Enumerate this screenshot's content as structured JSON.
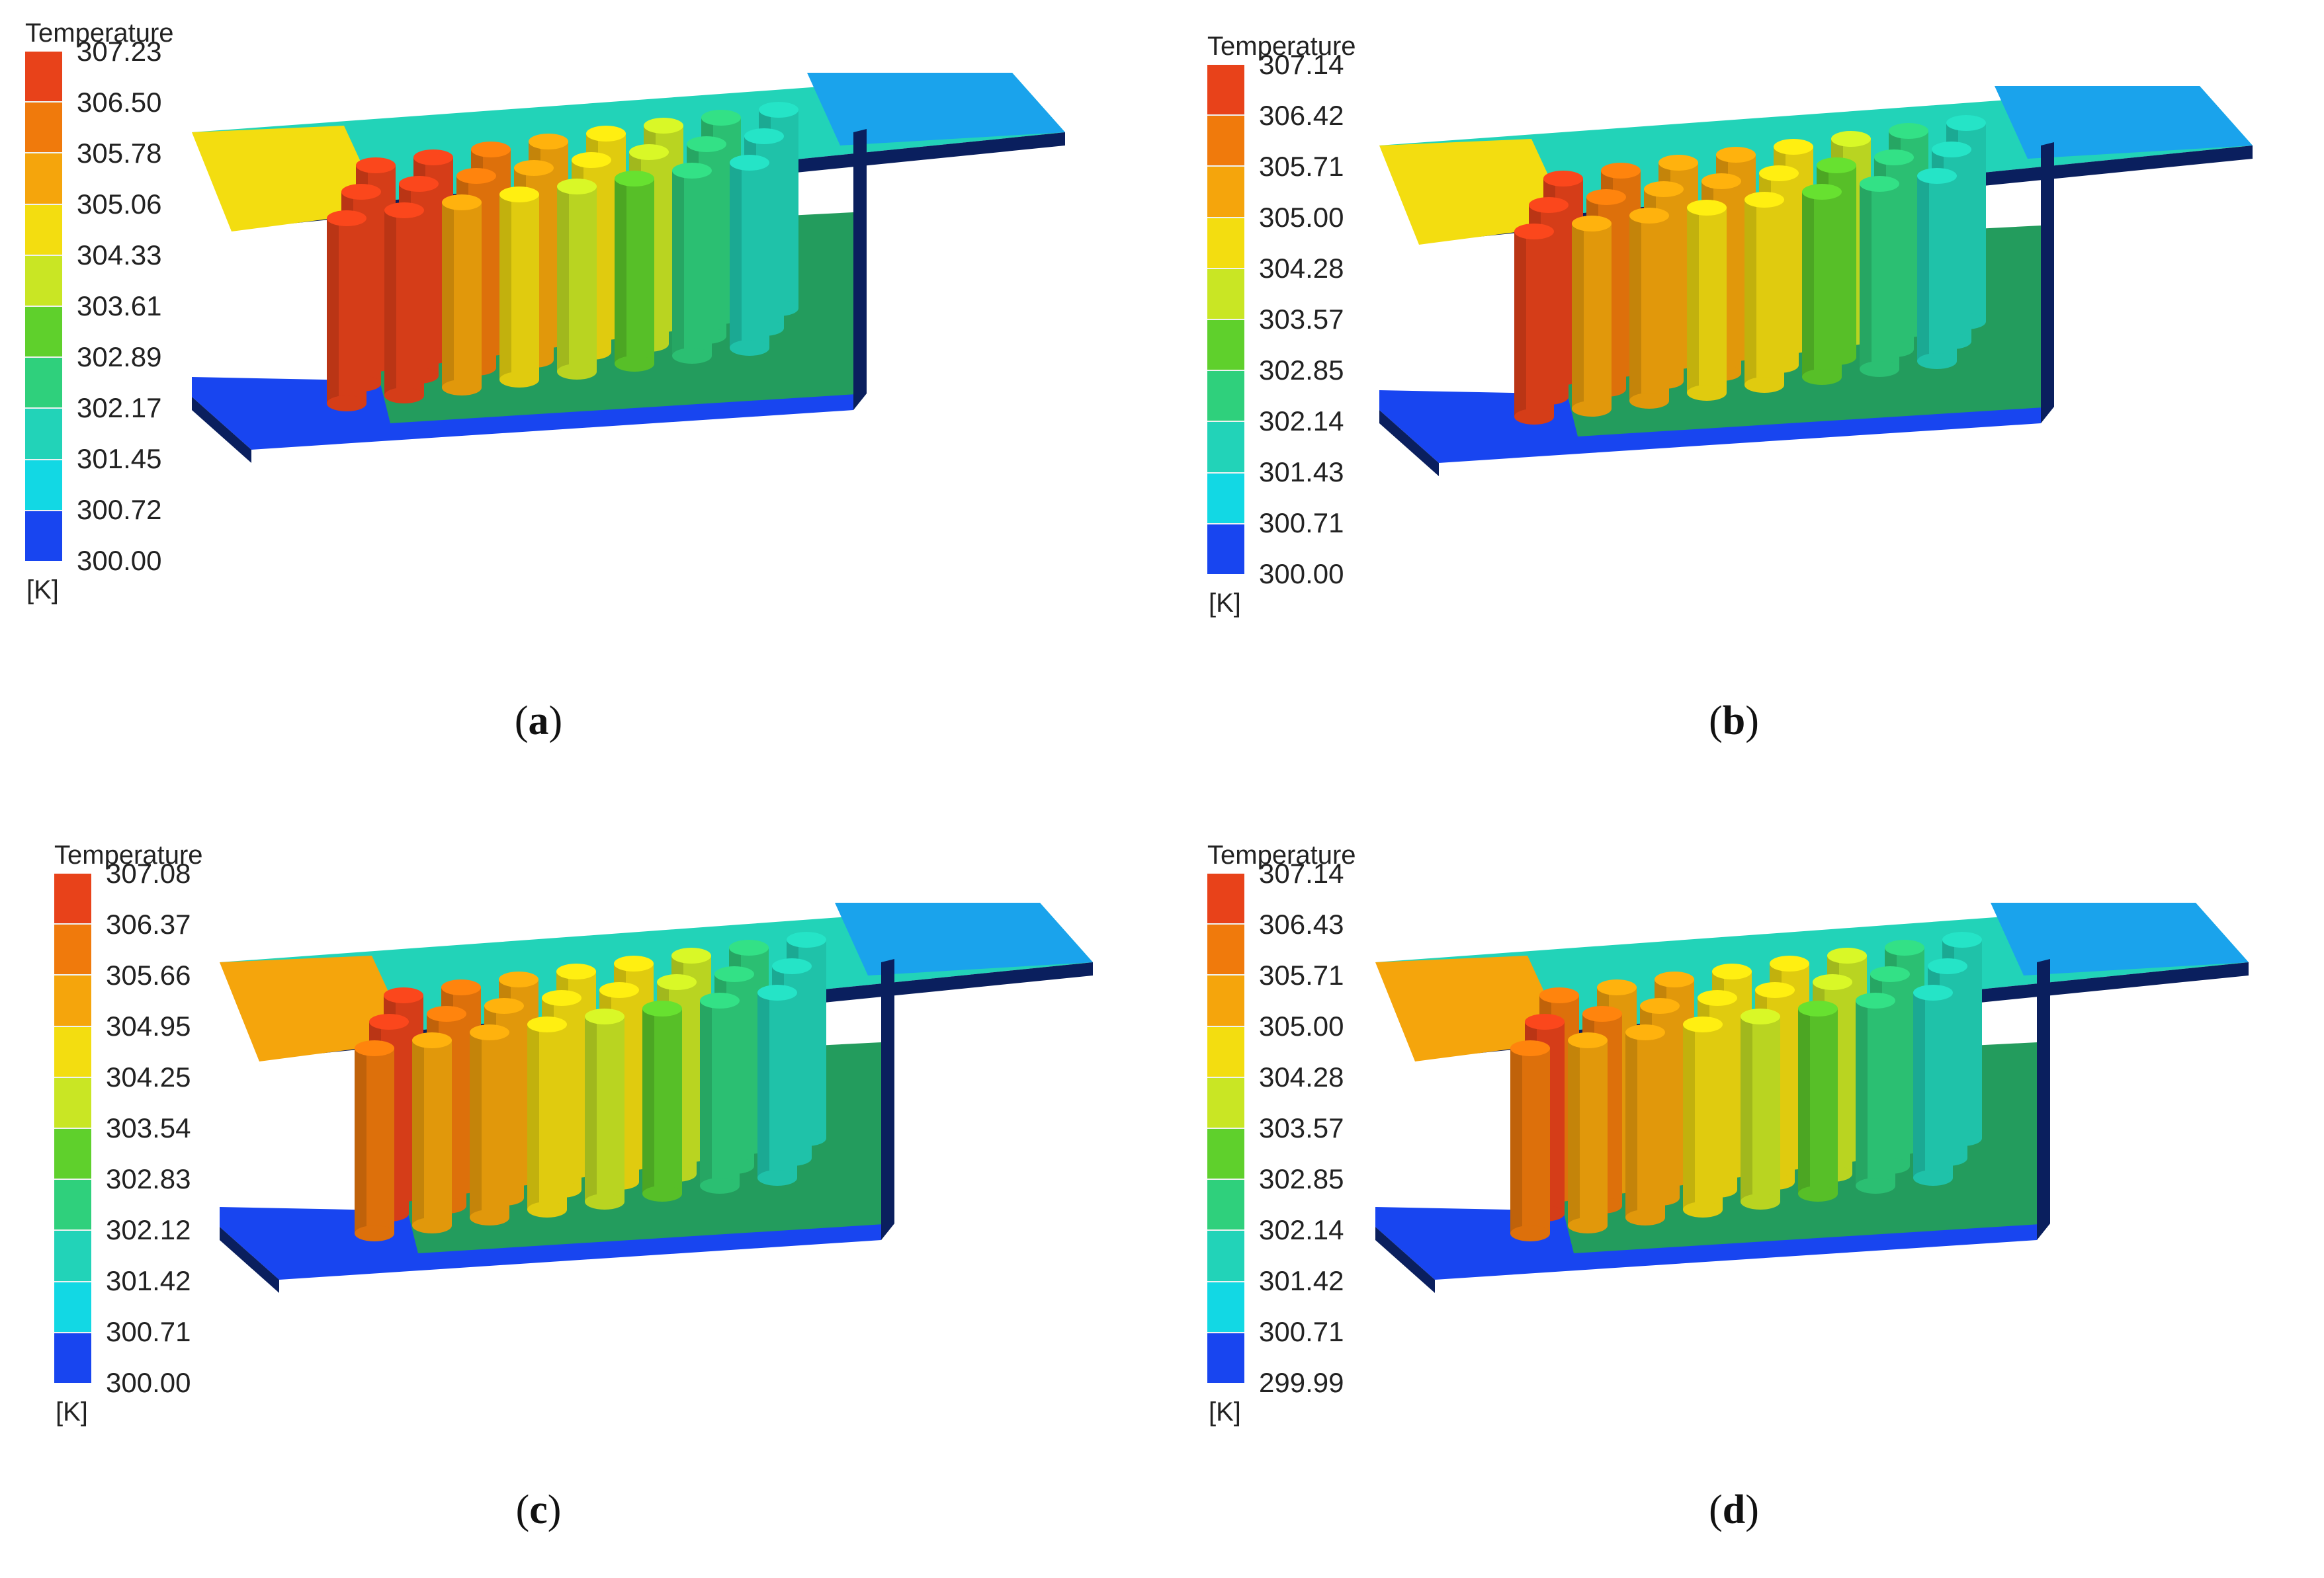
{
  "colors": {
    "bands": [
      "#e8421a",
      "#f07a0c",
      "#f5a50c",
      "#f3dd10",
      "#c9e624",
      "#5fd02c",
      "#2fd07c",
      "#22d3b8",
      "#12d8e4",
      "#1aa3ec",
      "#1a63ee"
    ],
    "deep_blue": "#1845f0",
    "dark_edge": "#0a1f5e",
    "background": "#ffffff"
  },
  "panels": [
    {
      "id": "a",
      "legend": {
        "title": "Temperature",
        "unit": "[K]",
        "ticks": [
          "307.23",
          "306.50",
          "305.78",
          "305.06",
          "304.33",
          "303.61",
          "302.89",
          "302.17",
          "301.45",
          "300.72",
          "300.00"
        ]
      },
      "caption": {
        "open": "(",
        "letter": "a",
        "close": ")"
      },
      "cylinder_levels": [
        [
          0,
          0,
          1,
          2,
          3,
          4,
          6,
          7
        ],
        [
          0,
          0,
          1,
          2,
          3,
          4,
          6,
          7
        ],
        [
          0,
          0,
          2,
          3,
          4,
          5,
          6,
          7
        ]
      ],
      "inlet_level": 3
    },
    {
      "id": "b",
      "legend": {
        "title": "Temperature",
        "unit": "[K]",
        "ticks": [
          "307.14",
          "306.42",
          "305.71",
          "305.00",
          "304.28",
          "303.57",
          "302.85",
          "302.14",
          "301.43",
          "300.71",
          "300.00"
        ]
      },
      "caption": {
        "open": "(",
        "letter": "b",
        "close": ")"
      },
      "cylinder_levels": [
        [
          0,
          1,
          2,
          2,
          3,
          4,
          6,
          7
        ],
        [
          0,
          1,
          2,
          2,
          3,
          5,
          6,
          7
        ],
        [
          0,
          2,
          2,
          3,
          3,
          5,
          6,
          7
        ]
      ],
      "inlet_level": 3
    },
    {
      "id": "c",
      "legend": {
        "title": "Temperature",
        "unit": "[K]",
        "ticks": [
          "307.08",
          "306.37",
          "305.66",
          "304.95",
          "304.25",
          "303.54",
          "302.83",
          "302.12",
          "301.42",
          "300.71",
          "300.00"
        ]
      },
      "caption": {
        "open": "(",
        "letter": "c",
        "close": ")"
      },
      "cylinder_levels": [
        [
          0,
          1,
          2,
          3,
          3,
          4,
          6,
          7
        ],
        [
          0,
          1,
          2,
          3,
          3,
          4,
          6,
          7
        ],
        [
          1,
          2,
          2,
          3,
          4,
          5,
          6,
          7
        ]
      ],
      "inlet_level": 2
    },
    {
      "id": "d",
      "legend": {
        "title": "Temperature",
        "unit": "[K]",
        "ticks": [
          "307.14",
          "306.43",
          "305.71",
          "305.00",
          "304.28",
          "303.57",
          "302.85",
          "302.14",
          "301.42",
          "300.71",
          "299.99"
        ]
      },
      "caption": {
        "open": "(",
        "letter": "d",
        "close": ")"
      },
      "cylinder_levels": [
        [
          1,
          2,
          2,
          3,
          3,
          4,
          6,
          7
        ],
        [
          0,
          1,
          2,
          3,
          3,
          4,
          6,
          7
        ],
        [
          1,
          2,
          2,
          3,
          4,
          5,
          6,
          7
        ]
      ],
      "inlet_level": 2
    }
  ]
}
